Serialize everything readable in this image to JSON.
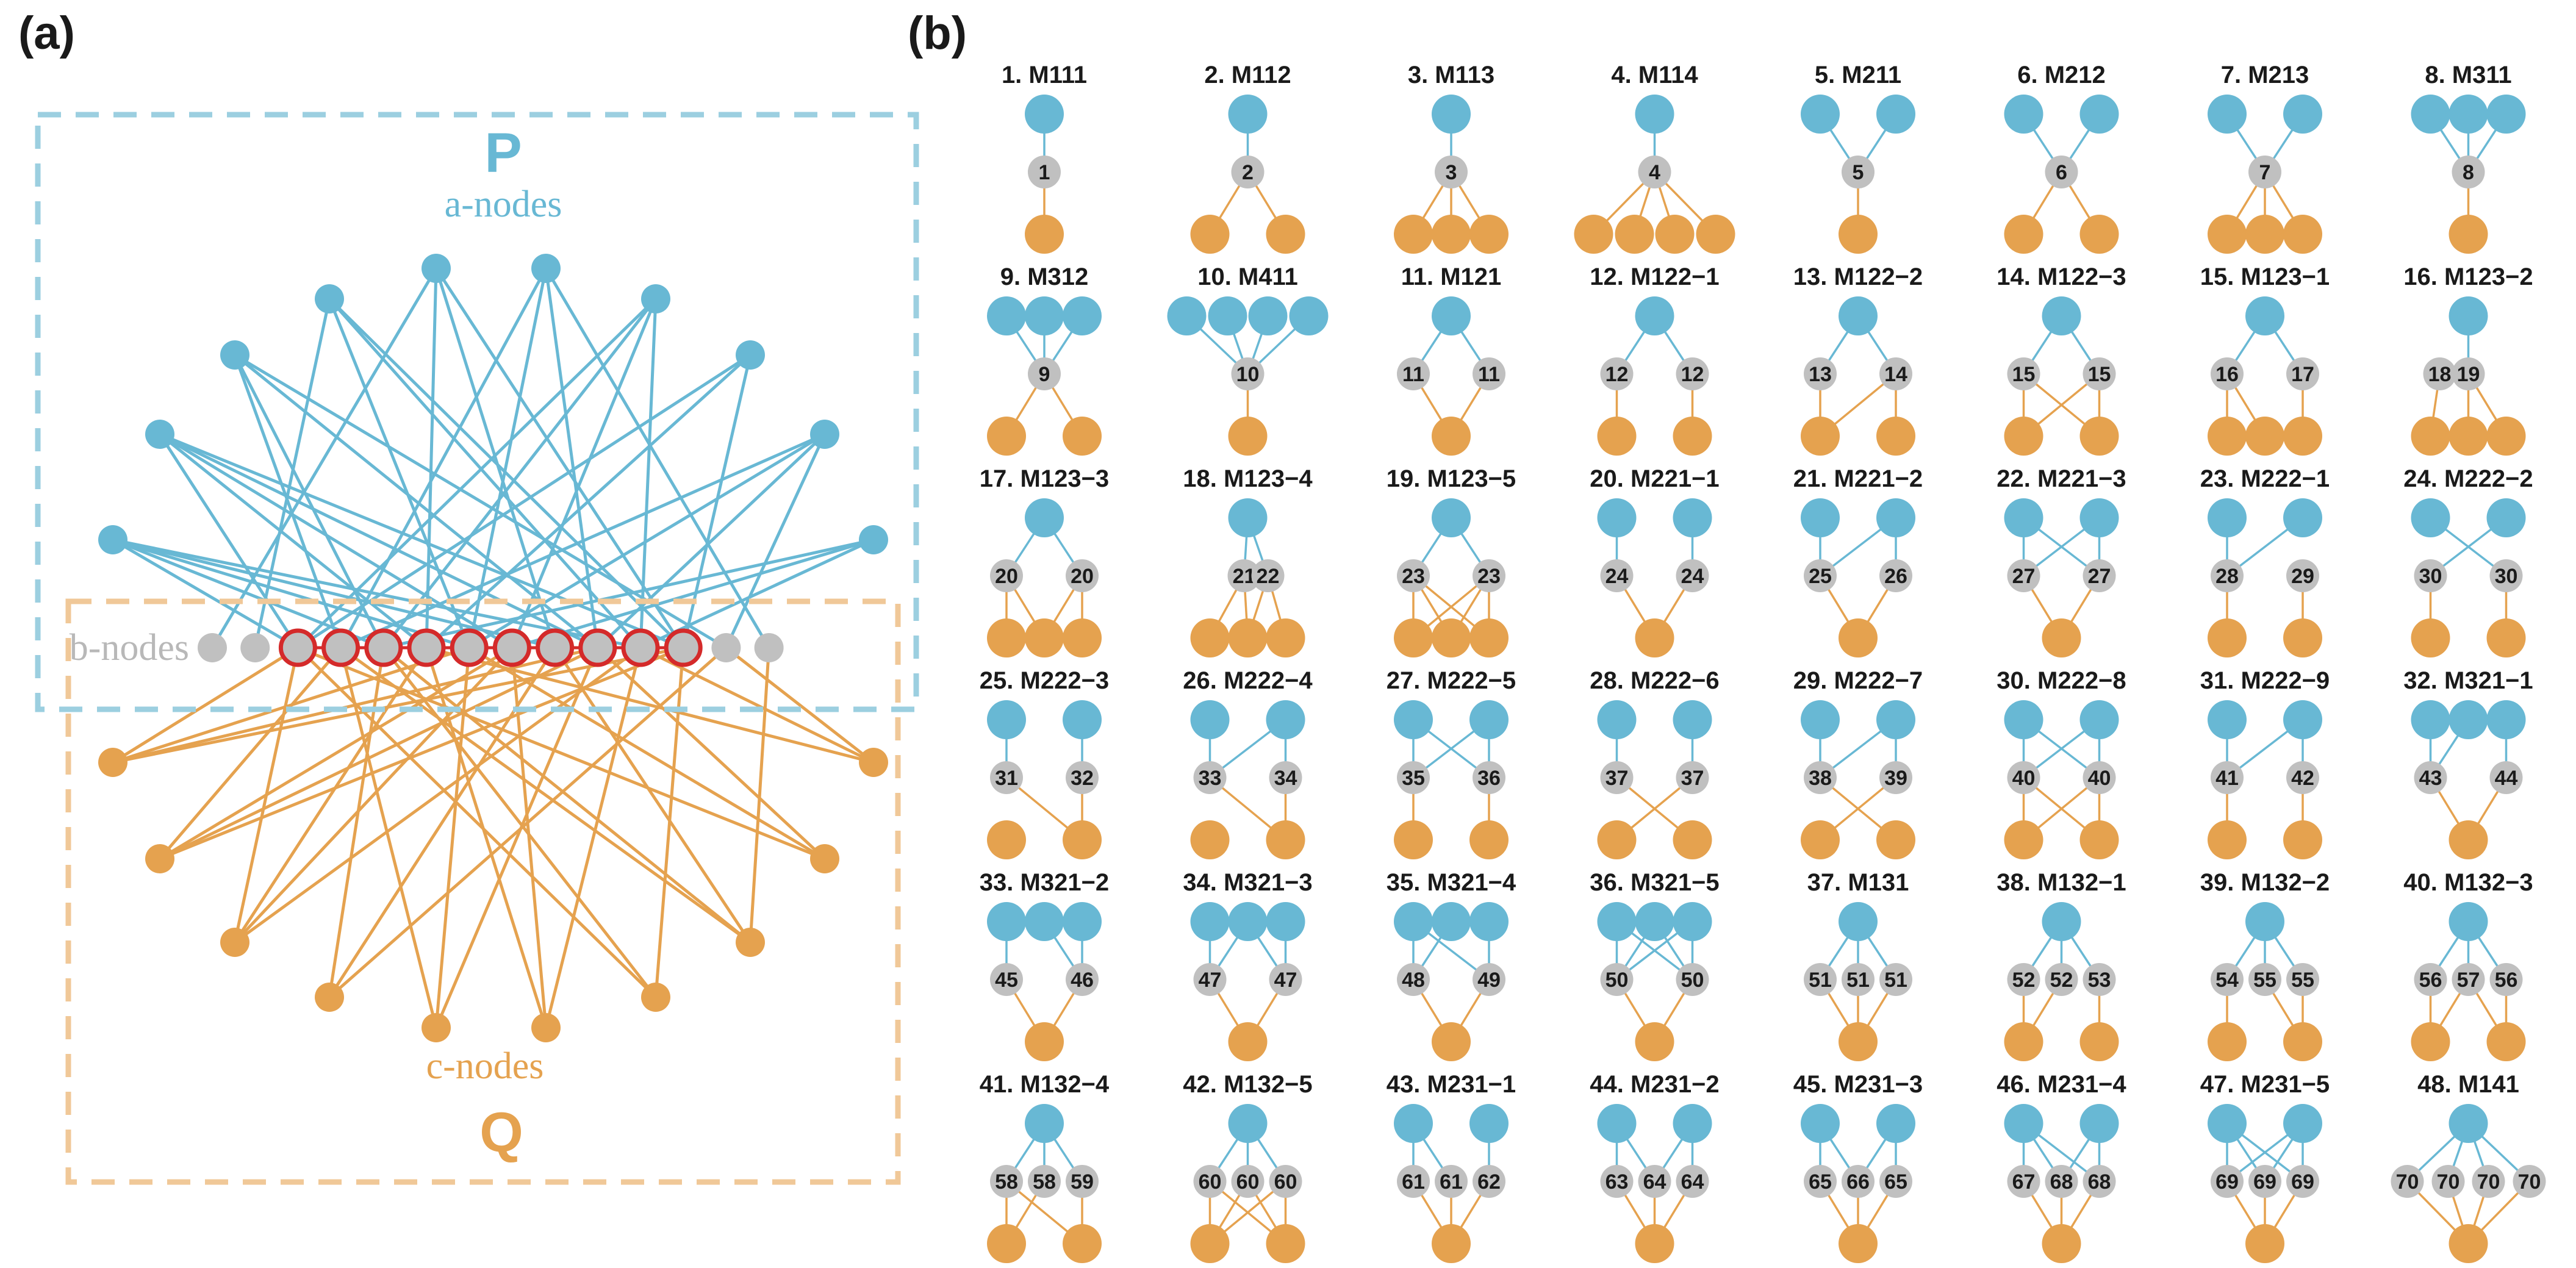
{
  "panel_a": {
    "label": "(a)",
    "box_p_label": "P",
    "box_q_label": "Q",
    "a_nodes_label": "a-nodes",
    "b_nodes_label": "b-nodes",
    "c_nodes_label": "c-nodes"
  },
  "panel_b": {
    "label": "(b)",
    "motifs": [
      {
        "title": "1. M111",
        "labels": [
          "1"
        ]
      },
      {
        "title": "2. M112",
        "labels": [
          "2"
        ]
      },
      {
        "title": "3. M113",
        "labels": [
          "3"
        ]
      },
      {
        "title": "4. M114",
        "labels": [
          "4"
        ]
      },
      {
        "title": "5. M211",
        "labels": [
          "5"
        ]
      },
      {
        "title": "6. M212",
        "labels": [
          "6"
        ]
      },
      {
        "title": "7. M213",
        "labels": [
          "7"
        ]
      },
      {
        "title": "8. M311",
        "labels": [
          "8"
        ]
      },
      {
        "title": "9. M312",
        "labels": [
          "9"
        ]
      },
      {
        "title": "10. M411",
        "labels": [
          "10"
        ]
      },
      {
        "title": "11. M121",
        "labels": [
          "11",
          "11"
        ]
      },
      {
        "title": "12. M122−1",
        "labels": [
          "12",
          "12"
        ]
      },
      {
        "title": "13. M122−2",
        "labels": [
          "13",
          "14"
        ]
      },
      {
        "title": "14. M122−3",
        "labels": [
          "15",
          "15"
        ]
      },
      {
        "title": "15. M123−1",
        "labels": [
          "16",
          "17"
        ]
      },
      {
        "title": "16. M123−2",
        "labels": [
          "18",
          "19"
        ]
      },
      {
        "title": "17. M123−3",
        "labels": [
          "20",
          "20"
        ]
      },
      {
        "title": "18. M123−4",
        "labels": [
          "21",
          "22"
        ]
      },
      {
        "title": "19. M123−5",
        "labels": [
          "23",
          "23"
        ]
      },
      {
        "title": "20. M221−1",
        "labels": [
          "24",
          "24"
        ]
      },
      {
        "title": "21. M221−2",
        "labels": [
          "25",
          "26"
        ]
      },
      {
        "title": "22. M221−3",
        "labels": [
          "27",
          "27"
        ]
      },
      {
        "title": "23. M222−1",
        "labels": [
          "28",
          "29"
        ]
      },
      {
        "title": "24. M222−2",
        "labels": [
          "30",
          "30"
        ]
      },
      {
        "title": "25. M222−3",
        "labels": [
          "31",
          "32"
        ]
      },
      {
        "title": "26. M222−4",
        "labels": [
          "33",
          "34"
        ]
      },
      {
        "title": "27. M222−5",
        "labels": [
          "35",
          "36"
        ]
      },
      {
        "title": "28. M222−6",
        "labels": [
          "37",
          "37"
        ]
      },
      {
        "title": "29. M222−7",
        "labels": [
          "38",
          "39"
        ]
      },
      {
        "title": "30. M222−8",
        "labels": [
          "40",
          "40"
        ]
      },
      {
        "title": "31. M222−9",
        "labels": [
          "41",
          "42"
        ]
      },
      {
        "title": "32. M321−1",
        "labels": [
          "43",
          "44"
        ]
      },
      {
        "title": "33. M321−2",
        "labels": [
          "45",
          "46"
        ]
      },
      {
        "title": "34. M321−3",
        "labels": [
          "47",
          "47"
        ]
      },
      {
        "title": "35. M321−4",
        "labels": [
          "48",
          "49"
        ]
      },
      {
        "title": "36. M321−5",
        "labels": [
          "50",
          "50"
        ]
      },
      {
        "title": "37. M131",
        "labels": [
          "51",
          "51",
          "51"
        ]
      },
      {
        "title": "38. M132−1",
        "labels": [
          "52",
          "52",
          "53"
        ]
      },
      {
        "title": "39. M132−2",
        "labels": [
          "54",
          "55",
          "55"
        ]
      },
      {
        "title": "40. M132−3",
        "labels": [
          "56",
          "57",
          "56"
        ]
      },
      {
        "title": "41. M132−4",
        "labels": [
          "58",
          "58",
          "59"
        ]
      },
      {
        "title": "42. M132−5",
        "labels": [
          "60",
          "60",
          "60"
        ]
      },
      {
        "title": "43. M231−1",
        "labels": [
          "61",
          "61",
          "62"
        ]
      },
      {
        "title": "44. M231−2",
        "labels": [
          "63",
          "64",
          "64"
        ]
      },
      {
        "title": "45. M231−3",
        "labels": [
          "65",
          "66",
          "65"
        ]
      },
      {
        "title": "46. M231−4",
        "labels": [
          "67",
          "68",
          "68"
        ]
      },
      {
        "title": "47. M231−5",
        "labels": [
          "69",
          "69",
          "69"
        ]
      },
      {
        "title": "48. M141",
        "labels": [
          "70",
          "70",
          "70",
          "70"
        ]
      }
    ]
  },
  "colors": {
    "a_node": "#68b8d4",
    "b_node": "#c0c0c0",
    "c_node": "#e5a24f",
    "highlight": "#d42a2a",
    "box_p": "#9ccfe0",
    "box_q": "#f0c898",
    "text": "#1a1a1a"
  }
}
